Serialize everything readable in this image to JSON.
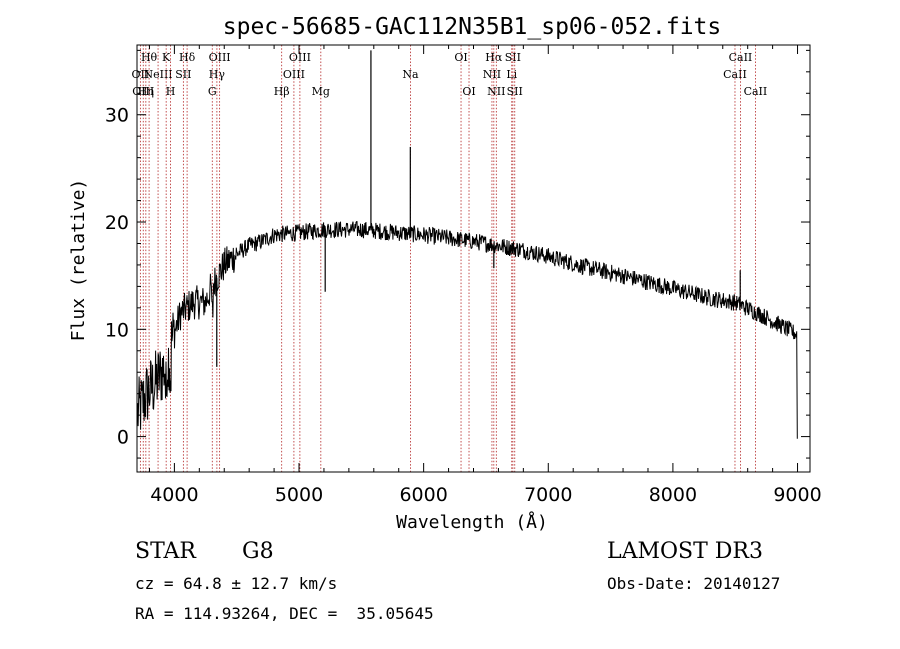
{
  "chart_data": {
    "type": "line",
    "title": "spec-56685-GAC112N35B1_sp06-052.fits",
    "xlabel": "Wavelength (Å)",
    "ylabel": "Flux (relative)",
    "xlim": [
      3700,
      9100
    ],
    "ylim": [
      -3.3,
      36.5
    ],
    "xticks": [
      4000,
      5000,
      6000,
      7000,
      8000,
      9000
    ],
    "yticks": [
      0,
      10,
      20,
      30
    ],
    "continuum": [
      [
        3700,
        2
      ],
      [
        3780,
        4
      ],
      [
        3850,
        5
      ],
      [
        3950,
        7
      ],
      [
        3980,
        9
      ],
      [
        4050,
        11.5
      ],
      [
        4150,
        12.5
      ],
      [
        4250,
        12.5
      ],
      [
        4300,
        14
      ],
      [
        4400,
        16
      ],
      [
        4500,
        17
      ],
      [
        4600,
        17.8
      ],
      [
        4700,
        18.2
      ],
      [
        4800,
        18.8
      ],
      [
        5000,
        19
      ],
      [
        5200,
        19.3
      ],
      [
        5500,
        19.3
      ],
      [
        5800,
        19
      ],
      [
        6000,
        18.8
      ],
      [
        6200,
        18.5
      ],
      [
        6400,
        18.2
      ],
      [
        6600,
        17.8
      ],
      [
        6800,
        17.4
      ],
      [
        7000,
        16.8
      ],
      [
        7300,
        15.8
      ],
      [
        7600,
        15
      ],
      [
        8000,
        13.8
      ],
      [
        8300,
        12.9
      ],
      [
        8500,
        12.5
      ],
      [
        8700,
        11.4
      ],
      [
        9000,
        9.5
      ]
    ],
    "spikes": [
      {
        "x": 5577,
        "y": 36
      },
      {
        "x": 5893,
        "y": 27
      },
      {
        "x": 5210,
        "y": 13.5
      },
      {
        "x": 4340,
        "y": 6.5
      },
      {
        "x": 6563,
        "y": 15.7
      },
      {
        "x": 8540,
        "y": 15.5
      }
    ],
    "lines": [
      {
        "x": 3727,
        "label": "OII",
        "row": 2
      },
      {
        "x": 3750,
        "label": "OIII",
        "row": 3
      },
      {
        "x": 3771,
        "label": "Hη",
        "row": 3
      },
      {
        "x": 3797,
        "label": "Hθ",
        "row": 1
      },
      {
        "x": 3869,
        "label": "NeIII",
        "row": 2
      },
      {
        "x": 3934,
        "label": "K",
        "row": 1
      },
      {
        "x": 3969,
        "label": "H",
        "row": 3
      },
      {
        "x": 4072,
        "label": "SII",
        "row": 2
      },
      {
        "x": 4102,
        "label": "Hδ",
        "row": 1
      },
      {
        "x": 4304,
        "label": "G",
        "row": 3
      },
      {
        "x": 4341,
        "label": "Hγ",
        "row": 2
      },
      {
        "x": 4363,
        "label": "OIII",
        "row": 1
      },
      {
        "x": 4861,
        "label": "Hβ",
        "row": 3
      },
      {
        "x": 4959,
        "label": "OIII",
        "row": 2
      },
      {
        "x": 5007,
        "label": "OIII",
        "row": 1
      },
      {
        "x": 5175,
        "label": "Mg",
        "row": 3
      },
      {
        "x": 5894,
        "label": "Na",
        "row": 2
      },
      {
        "x": 6300,
        "label": "OI",
        "row": 1
      },
      {
        "x": 6364,
        "label": "OI",
        "row": 3
      },
      {
        "x": 6548,
        "label": "NII",
        "row": 2
      },
      {
        "x": 6563,
        "label": "Hα",
        "row": 1
      },
      {
        "x": 6583,
        "label": "NII",
        "row": 3
      },
      {
        "x": 6707,
        "label": "Li",
        "row": 2
      },
      {
        "x": 6716,
        "label": "SII",
        "row": 1
      },
      {
        "x": 6731,
        "label": "SII",
        "row": 3
      },
      {
        "x": 8498,
        "label": "CaII",
        "row": 2
      },
      {
        "x": 8542,
        "label": "CaII",
        "row": 1
      },
      {
        "x": 8662,
        "label": "CaII",
        "row": 3
      }
    ]
  },
  "info": {
    "class": "STAR",
    "subclass": "G8",
    "survey": "LAMOST DR3",
    "cz": "cz = 64.8 ± 12.7 km/s",
    "obs_date": "Obs-Date: 20140127",
    "coords": "RA = 114.93264, DEC =  35.05645"
  }
}
